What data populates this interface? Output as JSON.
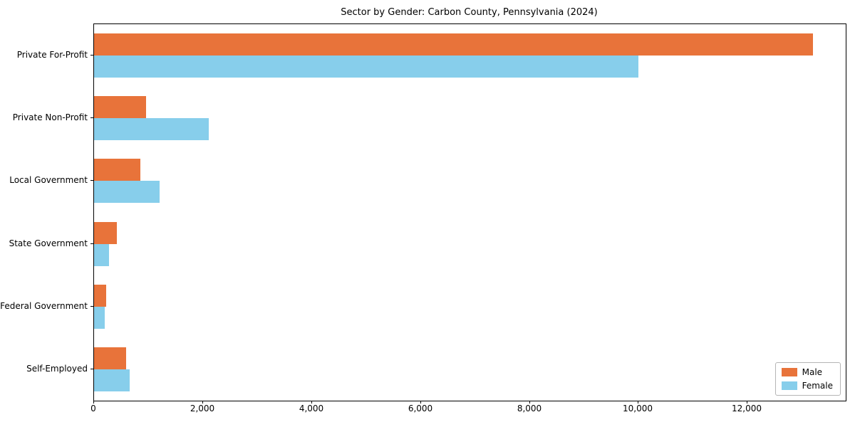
{
  "chart_data": {
    "type": "bar",
    "orientation": "horizontal",
    "title": "Sector by Gender: Carbon County, Pennsylvania (2024)",
    "xlabel": "",
    "ylabel": "",
    "grid": false,
    "legend_position": "lower right",
    "xlim": [
      0,
      13800
    ],
    "categories": [
      "Private For-Profit",
      "Private Non-Profit",
      "Local Government",
      "State Government",
      "Federal Government",
      "Self-Employed"
    ],
    "series": [
      {
        "name": "Male",
        "color": "#e8733a",
        "values": [
          13200,
          950,
          850,
          420,
          220,
          590
        ]
      },
      {
        "name": "Female",
        "color": "#87ceeb",
        "values": [
          10000,
          2100,
          1200,
          280,
          190,
          650
        ]
      }
    ],
    "x_ticks": [
      {
        "value": 0,
        "label": "0"
      },
      {
        "value": 2000,
        "label": "2,000"
      },
      {
        "value": 4000,
        "label": "4,000"
      },
      {
        "value": 6000,
        "label": "6,000"
      },
      {
        "value": 8000,
        "label": "8,000"
      },
      {
        "value": 10000,
        "label": "10,000"
      },
      {
        "value": 12000,
        "label": "12,000"
      }
    ]
  }
}
